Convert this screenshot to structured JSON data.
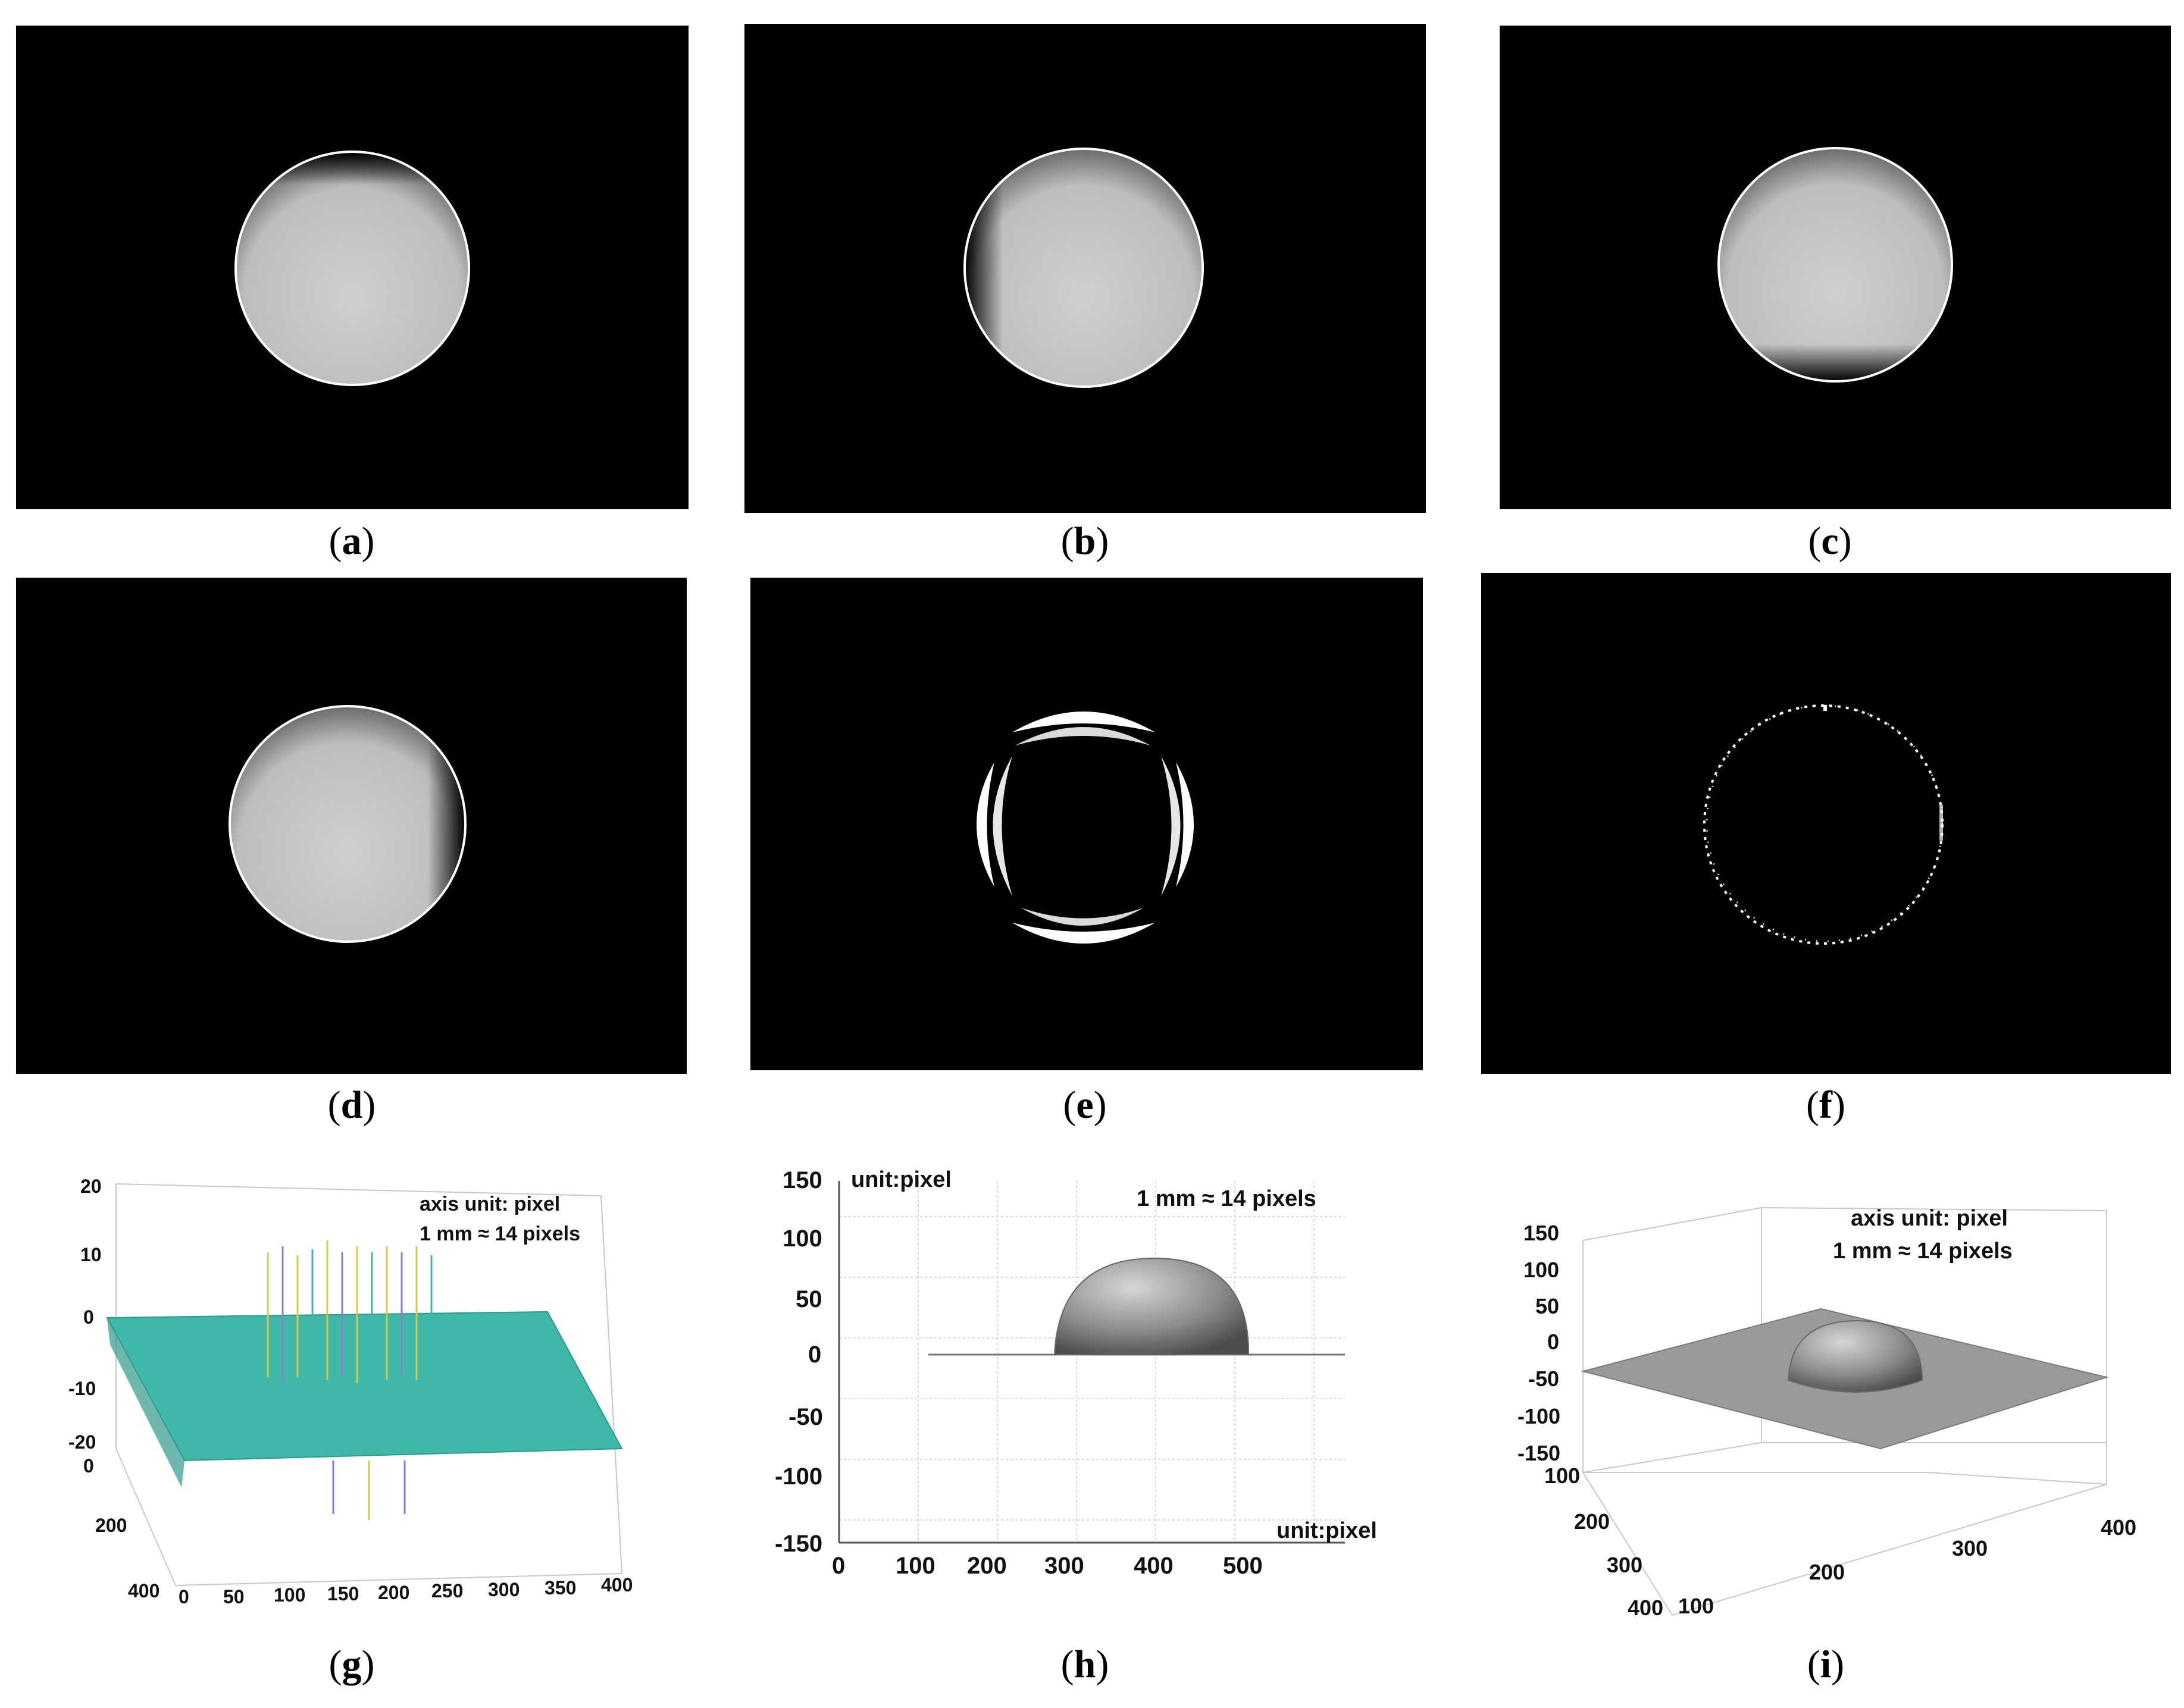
{
  "captions": {
    "a": "a",
    "b": "b",
    "c": "c",
    "d": "d",
    "e": "e",
    "f": "f",
    "g": "g",
    "h": "h",
    "i": "i"
  },
  "panels": {
    "a": {
      "description_shading": "dark-top"
    },
    "b": {
      "description_shading": "dark-left"
    },
    "c": {
      "description_shading": "dark-bottom"
    },
    "d": {
      "description_shading": "dark-right"
    }
  },
  "colors": {
    "background": "#000000",
    "sphere": "#c8c8c8",
    "outline": "#ffffff",
    "surface_g": "#3fb8a8",
    "surface_h": "#8a8a8a"
  },
  "chart_data": [
    {
      "id": "g",
      "type": "surface3d",
      "annotations": [
        "axis unit: pixel",
        "1 mm ≈ 14 pixels"
      ],
      "z_ticks": [
        "20",
        "10",
        "0",
        "-10",
        "-20"
      ],
      "y_ticks": [
        "0",
        "200",
        "400"
      ],
      "x_ticks": [
        "0",
        "50",
        "100",
        "150",
        "200",
        "250",
        "300",
        "350",
        "400"
      ]
    },
    {
      "id": "h",
      "type": "surface-side-view",
      "unit_top": "unit:pixel",
      "unit_bottom": "unit:pixel",
      "annotation": "1 mm ≈ 14 pixels",
      "y_ticks": [
        "150",
        "100",
        "50",
        "0",
        "-50",
        "-100",
        "-150"
      ],
      "x_ticks": [
        "0",
        "100",
        "200",
        "300",
        "400",
        "500"
      ],
      "ylim": [
        -150,
        150
      ],
      "xlim": [
        0,
        560
      ]
    },
    {
      "id": "i",
      "type": "surface3d",
      "annotations": [
        "axis unit: pixel",
        "1 mm ≈ 14 pixels"
      ],
      "z_ticks": [
        "150",
        "100",
        "50",
        "0",
        "-50",
        "-100",
        "-150"
      ],
      "x_ticks_left": [
        "100",
        "200",
        "300",
        "400"
      ],
      "x_ticks_right": [
        "100",
        "200",
        "300",
        "400"
      ]
    }
  ]
}
